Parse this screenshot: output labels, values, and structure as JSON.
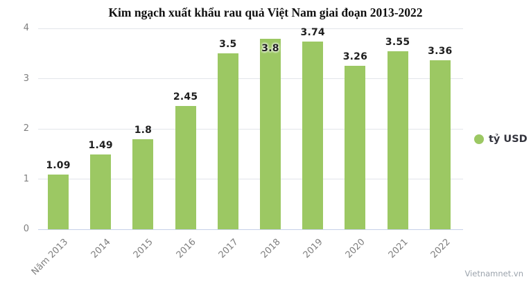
{
  "title": "Kim ngạch xuất khẩu rau quả Việt Nam giai đoạn 2013-2022",
  "watermark": "Vietnamnet.vn",
  "legend": {
    "label": "tỷ USD"
  },
  "colors": {
    "bar": "#9cc863",
    "grid": "#e2e5ea",
    "axis_line": "#c6d1e8",
    "tick_label": "#7e7e7e",
    "value_label": "#1f1f1f",
    "legend_text": "#34353e",
    "watermark": "#9ba3ac"
  },
  "chart_data": {
    "type": "bar",
    "title": "Kim ngạch xuất khẩu rau quả Việt Nam giai đoạn 2013-2022",
    "series_name": "tỷ USD",
    "categories": [
      "Năm 2013",
      "2014",
      "2015",
      "2016",
      "2017",
      "2018",
      "2019",
      "2020",
      "2021",
      "2022"
    ],
    "values": [
      1.09,
      1.49,
      1.8,
      2.45,
      3.5,
      3.8,
      3.74,
      3.26,
      3.55,
      3.36
    ],
    "value_labels": [
      "1.09",
      "1.49",
      "1.8",
      "2.45",
      "3.5",
      "3.8",
      "3.74",
      "3.26",
      "3.55",
      "3.36"
    ],
    "xlabel": "",
    "ylabel": "tỷ USD",
    "ylim": [
      0,
      4
    ],
    "yticks": [
      0,
      1,
      2,
      3,
      4
    ],
    "grid": true,
    "legend_position": "right",
    "label_inside_index": 5
  }
}
